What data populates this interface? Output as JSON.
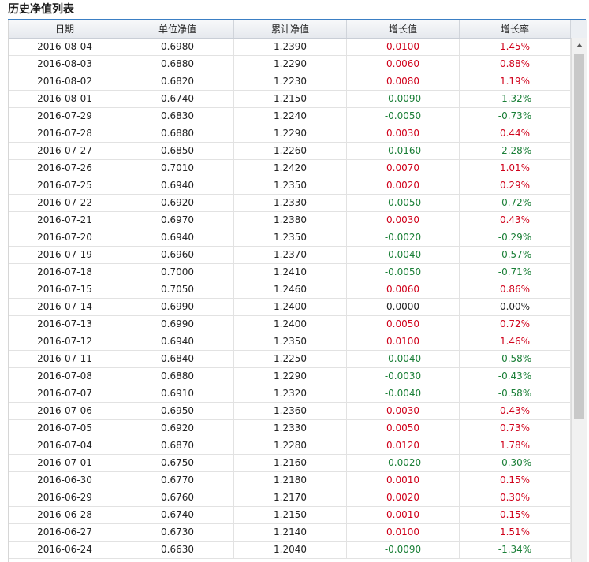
{
  "panel": {
    "title": "历史净值列表"
  },
  "columns": [
    "日期",
    "单位净值",
    "累计净值",
    "增长值",
    "增长率"
  ],
  "rows": [
    [
      "2016-08-04",
      "0.6980",
      "1.2390",
      "0.0100",
      "1.45%",
      "up"
    ],
    [
      "2016-08-03",
      "0.6880",
      "1.2290",
      "0.0060",
      "0.88%",
      "up"
    ],
    [
      "2016-08-02",
      "0.6820",
      "1.2230",
      "0.0080",
      "1.19%",
      "up"
    ],
    [
      "2016-08-01",
      "0.6740",
      "1.2150",
      "-0.0090",
      "-1.32%",
      "down"
    ],
    [
      "2016-07-29",
      "0.6830",
      "1.2240",
      "-0.0050",
      "-0.73%",
      "down"
    ],
    [
      "2016-07-28",
      "0.6880",
      "1.2290",
      "0.0030",
      "0.44%",
      "up"
    ],
    [
      "2016-07-27",
      "0.6850",
      "1.2260",
      "-0.0160",
      "-2.28%",
      "down"
    ],
    [
      "2016-07-26",
      "0.7010",
      "1.2420",
      "0.0070",
      "1.01%",
      "up"
    ],
    [
      "2016-07-25",
      "0.6940",
      "1.2350",
      "0.0020",
      "0.29%",
      "up"
    ],
    [
      "2016-07-22",
      "0.6920",
      "1.2330",
      "-0.0050",
      "-0.72%",
      "down"
    ],
    [
      "2016-07-21",
      "0.6970",
      "1.2380",
      "0.0030",
      "0.43%",
      "up"
    ],
    [
      "2016-07-20",
      "0.6940",
      "1.2350",
      "-0.0020",
      "-0.29%",
      "down"
    ],
    [
      "2016-07-19",
      "0.6960",
      "1.2370",
      "-0.0040",
      "-0.57%",
      "down"
    ],
    [
      "2016-07-18",
      "0.7000",
      "1.2410",
      "-0.0050",
      "-0.71%",
      "down"
    ],
    [
      "2016-07-15",
      "0.7050",
      "1.2460",
      "0.0060",
      "0.86%",
      "up"
    ],
    [
      "2016-07-14",
      "0.6990",
      "1.2400",
      "0.0000",
      "0.00%",
      "flat"
    ],
    [
      "2016-07-13",
      "0.6990",
      "1.2400",
      "0.0050",
      "0.72%",
      "up"
    ],
    [
      "2016-07-12",
      "0.6940",
      "1.2350",
      "0.0100",
      "1.46%",
      "up"
    ],
    [
      "2016-07-11",
      "0.6840",
      "1.2250",
      "-0.0040",
      "-0.58%",
      "down"
    ],
    [
      "2016-07-08",
      "0.6880",
      "1.2290",
      "-0.0030",
      "-0.43%",
      "down"
    ],
    [
      "2016-07-07",
      "0.6910",
      "1.2320",
      "-0.0040",
      "-0.58%",
      "down"
    ],
    [
      "2016-07-06",
      "0.6950",
      "1.2360",
      "0.0030",
      "0.43%",
      "up"
    ],
    [
      "2016-07-05",
      "0.6920",
      "1.2330",
      "0.0050",
      "0.73%",
      "up"
    ],
    [
      "2016-07-04",
      "0.6870",
      "1.2280",
      "0.0120",
      "1.78%",
      "up"
    ],
    [
      "2016-07-01",
      "0.6750",
      "1.2160",
      "-0.0020",
      "-0.30%",
      "down"
    ],
    [
      "2016-06-30",
      "0.6770",
      "1.2180",
      "0.0010",
      "0.15%",
      "up"
    ],
    [
      "2016-06-29",
      "0.6760",
      "1.2170",
      "0.0020",
      "0.30%",
      "up"
    ],
    [
      "2016-06-28",
      "0.6740",
      "1.2150",
      "0.0010",
      "0.15%",
      "up"
    ],
    [
      "2016-06-27",
      "0.6730",
      "1.2140",
      "0.0100",
      "1.51%",
      "up"
    ],
    [
      "2016-06-24",
      "0.6630",
      "1.2040",
      "-0.0090",
      "-1.34%",
      "down"
    ]
  ],
  "colors": {
    "up": "#d0021b",
    "down": "#1a7f37",
    "accent": "#3b7fc4"
  },
  "scrollbar": {
    "up_icon": "arrow-up-icon"
  }
}
